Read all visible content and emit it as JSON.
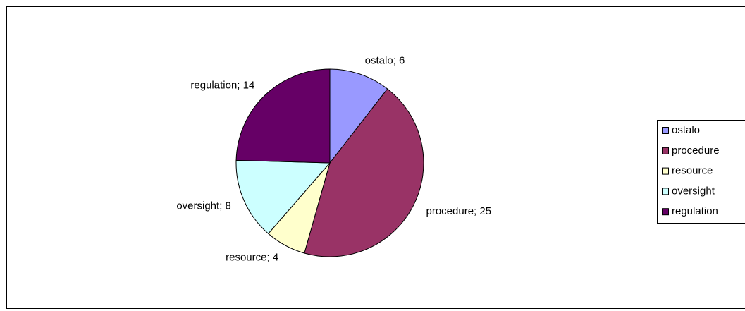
{
  "chart_data": {
    "type": "pie",
    "categories": [
      "ostalo",
      "procedure",
      "resource",
      "oversight",
      "regulation"
    ],
    "values": [
      6,
      25,
      4,
      8,
      14
    ],
    "value_labels": [
      "ostalo; 6",
      "procedure; 25",
      "resource; 4",
      "oversight; 8",
      "regulation; 14"
    ],
    "colors": [
      "#9999ff",
      "#993366",
      "#ffffcc",
      "#ccffff",
      "#660066"
    ],
    "legend": "right"
  }
}
